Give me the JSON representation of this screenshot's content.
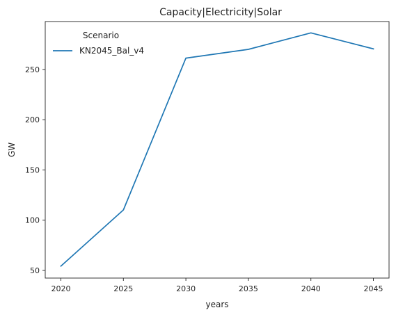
{
  "chart_data": {
    "type": "line",
    "title": "Capacity|Electricity|Solar",
    "xlabel": "years",
    "ylabel": "GW",
    "xlim": [
      2018.75,
      2046.25
    ],
    "ylim": [
      42.4,
      297.7
    ],
    "xticks": [
      2020,
      2025,
      2030,
      2035,
      2040,
      2045
    ],
    "yticks": [
      50,
      100,
      150,
      200,
      250
    ],
    "grid": false,
    "legend": {
      "title": "Scenario",
      "placement": "top-left"
    },
    "series": [
      {
        "name": "KN2045_Bal_v4",
        "color": "#1f77b4",
        "x": [
          2020,
          2025,
          2030,
          2035,
          2040,
          2045
        ],
        "y": [
          54.3,
          110.2,
          261.3,
          270.0,
          286.4,
          270.5
        ]
      }
    ]
  }
}
